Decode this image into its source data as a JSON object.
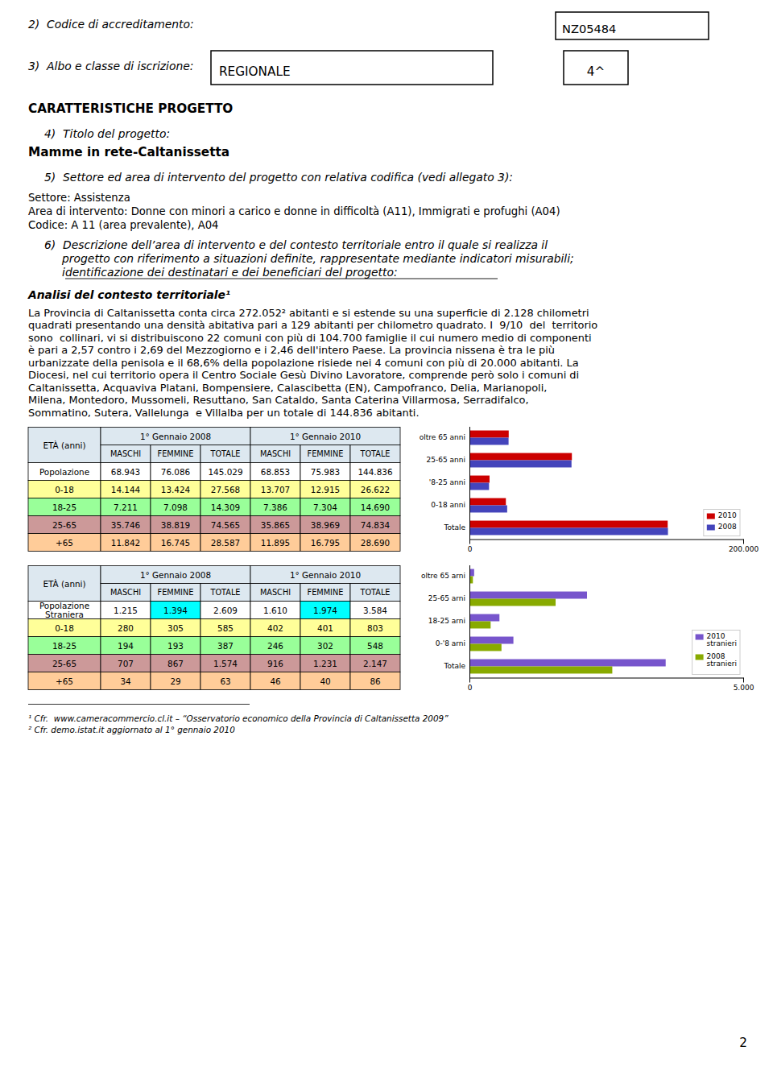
{
  "page": {
    "item2_label": "2)  Codice di accreditamento:",
    "item2_value": "NZ05484",
    "item3_label": "3)  Albo e classe di iscrizione:",
    "item3_value": "REGIONALE",
    "item3_class": "4^",
    "section_title": "CARATTERISTICHE PROGETTO",
    "item4_label": "4)  Titolo del progetto:",
    "item4_value": "Mamme in rete-Caltanissetta",
    "item5_label": "5)  Settore ed area di intervento del progetto con relativa codifica (vedi allegato 3):",
    "item5_lines": [
      "Settore: Assistenza",
      "Area di intervento: Donne con minori a carico e donne in difficoltà (A11), Immigrati e profughi (A04)",
      "Codice: A 11 (area prevalente), A04"
    ],
    "item6_lines": [
      "6)  Descrizione dell’area di intervento e del contesto territoriale entro il quale si realizza il",
      "     progetto con riferimento a situazioni definite, rappresentate mediante indicatori misurabili;",
      "     identificazione dei destinatari e dei beneficiari del progetto:"
    ],
    "analisi_title": "Analisi del contesto territoriale¹",
    "body_lines": [
      "La Provincia di Caltanissetta conta circa 272.052² abitanti e si estende su una superficie di 2.128 chilometri",
      "quadrati presentando una densità abitativa pari a 129 abitanti per chilometro quadrato. I  9/10  del  territorio",
      "sono  collinari, vi si distribuiscono 22 comuni con più di 104.700 famiglie il cui numero medio di componenti",
      "è pari a 2,57 contro i 2,69 del Mezzogiorno e i 2,46 dell'intero Paese. La provincia nissena è tra le più",
      "urbanizzate della penisola e il 68,6% della popolazione risiede nei 4 comuni con più di 20.000 abitanti. La",
      "Diocesi, nel cui territorio opera il Centro Sociale Gesù Divino Lavoratore, comprende però solo i comuni di",
      "Caltanissetta, Acquaviva Platani, Bompensiere, Calascibetta (EN), Campofranco, Delia, Marianopoli,",
      "Milena, Montedoro, Mussomeli, Resuttano, San Cataldo, Santa Caterina Villarmosa, Serradifalco,",
      "Sommatino, Sutera, Vallelunga  e Villalba per un totale di 144.836 abitanti."
    ],
    "footnote1": "¹ Cfr.  www.cameracommercio.cl.it – “Osservatorio economico della Provincia di Caltanissetta 2009”",
    "footnote2": "² Cfr. demo.istat.it aggiornato al 1° gennaio 2010",
    "page_number": "2"
  },
  "tables": [
    {
      "age_header": "ETÀ (anni)",
      "periods": [
        "1° Gennaio 2008",
        "1° Gennaio 2010"
      ],
      "columns": [
        "MASCHI",
        "FEMMINE",
        "TOTALE",
        "MASCHI",
        "FEMMINE",
        "TOTALE"
      ],
      "header_color": "#dde8f0",
      "rows": [
        [
          "Popolazione",
          "68.943",
          "76.086",
          "145.029",
          "68.853",
          "75.983",
          "144.836"
        ],
        [
          "0-18",
          "14.144",
          "13.424",
          "27.568",
          "13.707",
          "12.915",
          "26.622"
        ],
        [
          "18-25",
          "7.211",
          "7.098",
          "14.309",
          "7.386",
          "7.304",
          "14.690"
        ],
        [
          "25-65",
          "35.746",
          "38.819",
          "74.565",
          "35.865",
          "38.969",
          "74.834"
        ],
        [
          "+65",
          "11.842",
          "16.745",
          "28.587",
          "11.895",
          "16.795",
          "28.690"
        ]
      ],
      "row_colors": [
        "#ffffff",
        "#ffff99",
        "#99ff99",
        "#cc9999",
        "#ffcc99"
      ],
      "highlight_cells": [],
      "highlight_color": "#00ffff"
    },
    {
      "age_header": "ETÀ (anni)",
      "periods": [
        "1° Gennaio 2008",
        "1° Gennaio 2010"
      ],
      "columns": [
        "MASCHI",
        "FEMMINE",
        "TOTALE",
        "MASCHI",
        "FEMMINE",
        "TOTALE"
      ],
      "header_color": "#dde8f0",
      "rows": [
        [
          "Popolazione\nStraniera",
          "1.215",
          "1.394",
          "2.609",
          "1.610",
          "1.974",
          "3.584"
        ],
        [
          "0-18",
          "280",
          "305",
          "585",
          "402",
          "401",
          "803"
        ],
        [
          "18-25",
          "194",
          "193",
          "387",
          "246",
          "302",
          "548"
        ],
        [
          "25-65",
          "707",
          "867",
          "1.574",
          "916",
          "1.231",
          "2.147"
        ],
        [
          "+65",
          "34",
          "29",
          "63",
          "46",
          "40",
          "86"
        ]
      ],
      "row_colors": [
        "#ffffff",
        "#ffff99",
        "#99ff99",
        "#cc9999",
        "#ffcc99"
      ],
      "highlight_cells": [
        [
          0,
          2
        ],
        [
          0,
          5
        ]
      ],
      "highlight_color": "#00ffff"
    }
  ],
  "chart_data": [
    {
      "type": "bar",
      "orientation": "horizontal",
      "categories": [
        "Totale",
        "0-18 anni",
        "'8-25 anni",
        "25-65 anni",
        "oltre 65 anni"
      ],
      "series": [
        {
          "name": "2010",
          "color": "#cc0000",
          "values": [
            144836,
            26622,
            14690,
            74834,
            28690
          ]
        },
        {
          "name": "2008",
          "color": "#4444bb",
          "values": [
            145029,
            27568,
            14309,
            74565,
            28587
          ]
        }
      ],
      "xlim": [
        0,
        200000
      ],
      "xticks": [
        0,
        {
          "value": 200000,
          "label": "200.000"
        }
      ],
      "legend": "lower right",
      "grid": false
    },
    {
      "type": "bar",
      "orientation": "horizontal",
      "categories": [
        "Totale",
        "0-'8 arni",
        "18-25 arni",
        "25-65 arni",
        "oltre 65 arni"
      ],
      "series": [
        {
          "name": "2010\nstranieri",
          "color": "#7755cc",
          "values": [
            3584,
            803,
            548,
            2147,
            86
          ]
        },
        {
          "name": "2008\nstranieri",
          "color": "#88aa00",
          "values": [
            2609,
            585,
            387,
            1574,
            63
          ]
        }
      ],
      "xlim": [
        0,
        5000
      ],
      "xticks": [
        0,
        {
          "value": 5000,
          "label": "5.000"
        }
      ],
      "legend": "lower right",
      "grid": false
    }
  ]
}
